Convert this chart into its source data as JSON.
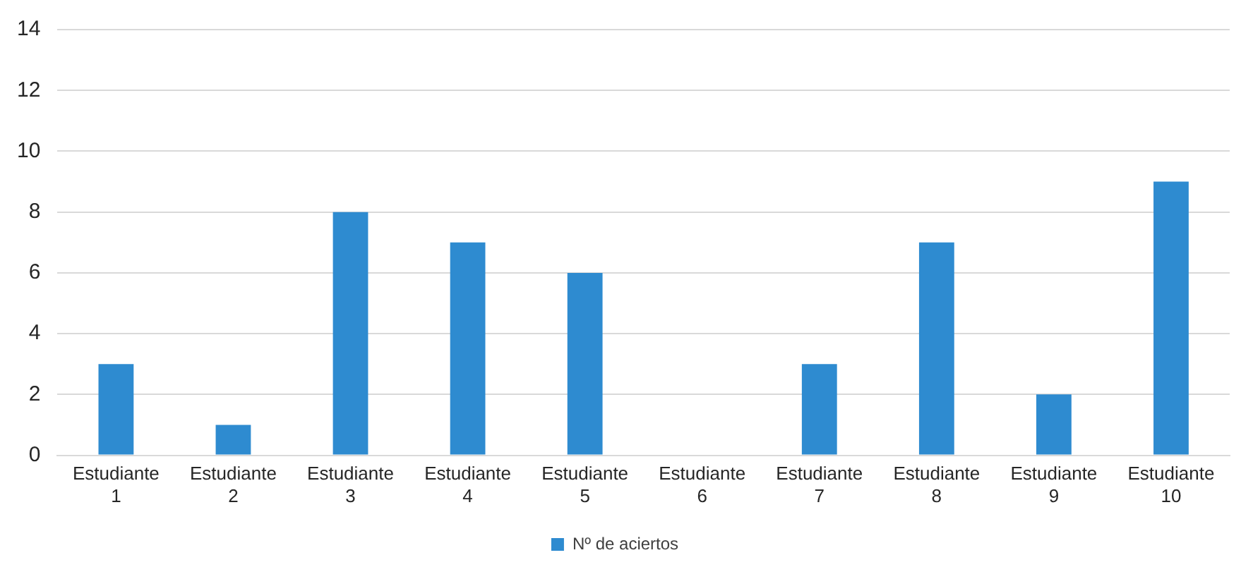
{
  "chart_data": {
    "type": "bar",
    "categories": [
      "Estudiante 1",
      "Estudiante 2",
      "Estudiante 3",
      "Estudiante 4",
      "Estudiante 5",
      "Estudiante 6",
      "Estudiante 7",
      "Estudiante 8",
      "Estudiante 9",
      "Estudiante 10"
    ],
    "series": [
      {
        "name": "Nº de aciertos",
        "color": "#2e8bd0",
        "values": [
          3,
          1,
          8,
          7,
          6,
          0,
          3,
          7,
          2,
          9
        ]
      }
    ],
    "ylim": [
      0,
      14
    ],
    "yticks": [
      0,
      2,
      4,
      6,
      8,
      10,
      12,
      14
    ],
    "grid": "y",
    "legend": "bottom"
  }
}
